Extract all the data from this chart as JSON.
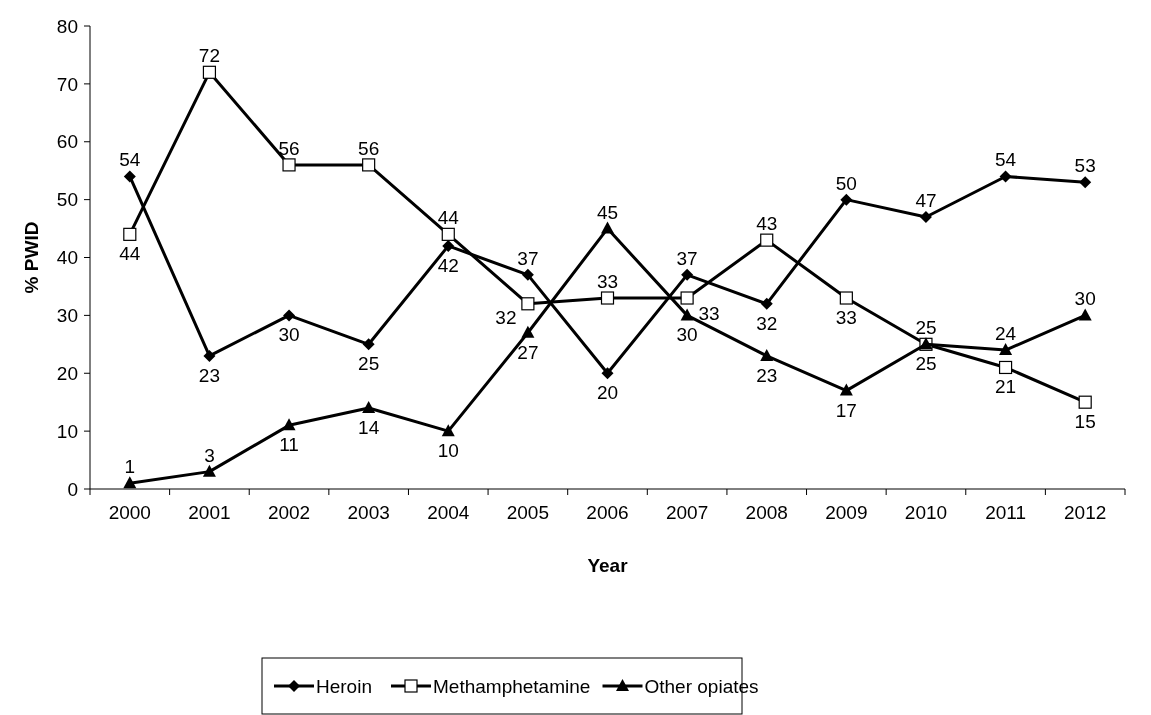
{
  "chart_data": {
    "type": "line",
    "xlabel": "Year",
    "ylabel": "% PWID",
    "categories": [
      "2000",
      "2001",
      "2002",
      "2003",
      "2004",
      "2005",
      "2006",
      "2007",
      "2008",
      "2009",
      "2010",
      "2011",
      "2012"
    ],
    "series": [
      {
        "name": "Heroin",
        "color": "#000000",
        "marker": "diamond",
        "values": [
          54,
          23,
          30,
          25,
          42,
          37,
          20,
          37,
          32,
          50,
          47,
          54,
          53
        ]
      },
      {
        "name": "Methamphetamine",
        "color": "#000000",
        "marker": "square",
        "values": [
          44,
          72,
          56,
          56,
          44,
          32,
          33,
          33,
          43,
          33,
          25,
          21,
          15
        ]
      },
      {
        "name": "Other opiates",
        "color": "#000000",
        "marker": "triangle",
        "values": [
          1,
          3,
          11,
          14,
          10,
          27,
          45,
          30,
          23,
          17,
          25,
          24,
          30
        ]
      }
    ],
    "ylim": [
      0,
      80
    ],
    "yticks": [
      0,
      10,
      20,
      30,
      40,
      50,
      60,
      70,
      80
    ],
    "grid": false,
    "legend": "bottom",
    "data_labels": true,
    "line_style": "solid"
  }
}
